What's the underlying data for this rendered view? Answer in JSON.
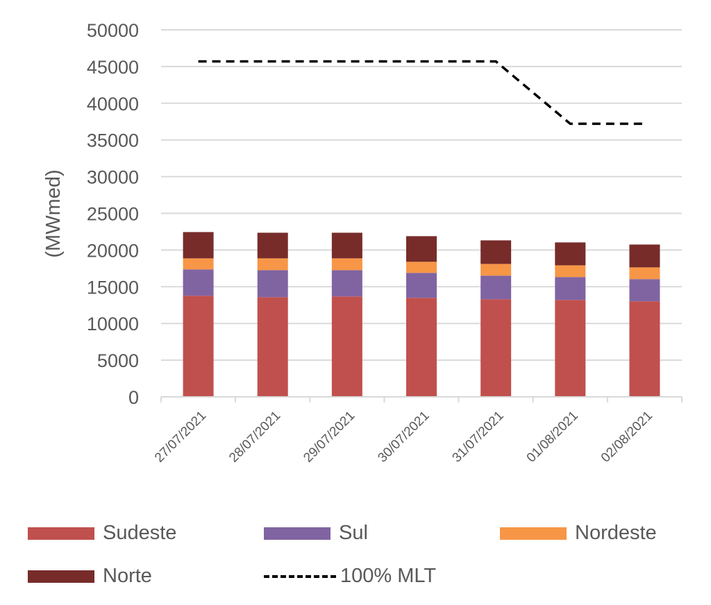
{
  "chart_data": {
    "type": "bar",
    "stacked": true,
    "title": "",
    "xlabel": "",
    "ylabel": "(MWmed)",
    "ylim": [
      0,
      50000
    ],
    "yticks": [
      0,
      5000,
      10000,
      15000,
      20000,
      25000,
      30000,
      35000,
      40000,
      45000,
      50000
    ],
    "grid": true,
    "legend_position": "bottom",
    "categories": [
      "27/07/2021",
      "28/07/2021",
      "29/07/2021",
      "30/07/2021",
      "31/07/2021",
      "01/08/2021",
      "02/08/2021"
    ],
    "series": [
      {
        "name": "Sudeste",
        "color": "#C0504D",
        "values": [
          13770,
          13580,
          13680,
          13490,
          13300,
          13210,
          13020
        ]
      },
      {
        "name": "Sul",
        "color": "#8064A2",
        "values": [
          3590,
          3680,
          3580,
          3400,
          3210,
          3110,
          3020
        ]
      },
      {
        "name": "Nordeste",
        "color": "#F79646",
        "values": [
          1510,
          1610,
          1610,
          1510,
          1600,
          1600,
          1600
        ]
      },
      {
        "name": "Norte",
        "color": "#772C2A",
        "values": [
          3580,
          3490,
          3490,
          3490,
          3210,
          3120,
          3110
        ]
      }
    ],
    "lines": [
      {
        "name": "100% MLT",
        "style": "dashed",
        "color": "#000000",
        "values": [
          45700,
          45700,
          45700,
          45700,
          45700,
          37200,
          37200
        ]
      }
    ]
  }
}
